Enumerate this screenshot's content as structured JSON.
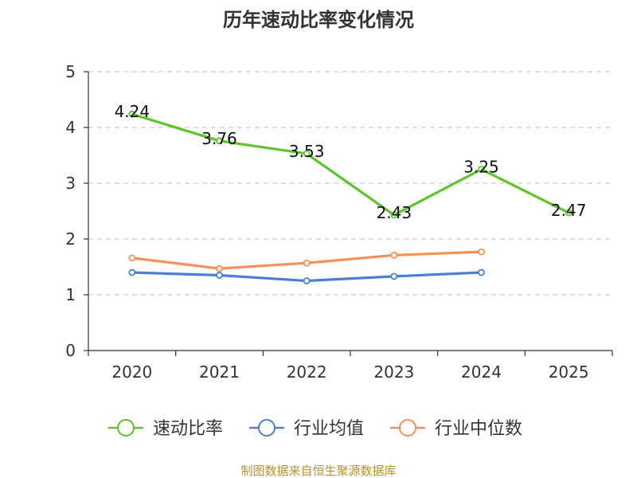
{
  "chart_data": {
    "type": "line",
    "title": "历年速动比率变化情况",
    "categories": [
      "2020",
      "2021",
      "2022",
      "2023",
      "2024",
      "2025"
    ],
    "ylim": [
      0,
      5
    ],
    "yticks": [
      0,
      1,
      2,
      3,
      4,
      5
    ],
    "grid": true,
    "legend_position": "bottom",
    "series": [
      {
        "name": "速动比率",
        "color": "#5cc52a",
        "values": [
          4.24,
          3.76,
          3.53,
          2.43,
          3.25,
          2.47
        ],
        "show_labels": true,
        "label_texts": [
          "4.24",
          "3.76",
          "3.53",
          "2.43",
          "3.25",
          "2.47"
        ]
      },
      {
        "name": "行业均值",
        "color": "#4a7fd8",
        "values": [
          1.4,
          1.35,
          1.25,
          1.33,
          1.4,
          null
        ],
        "show_labels": false
      },
      {
        "name": "行业中位数",
        "color": "#f59158",
        "values": [
          1.66,
          1.47,
          1.57,
          1.71,
          1.77,
          null
        ],
        "show_labels": false
      }
    ],
    "source": "制图数据来自恒生聚源数据库"
  }
}
